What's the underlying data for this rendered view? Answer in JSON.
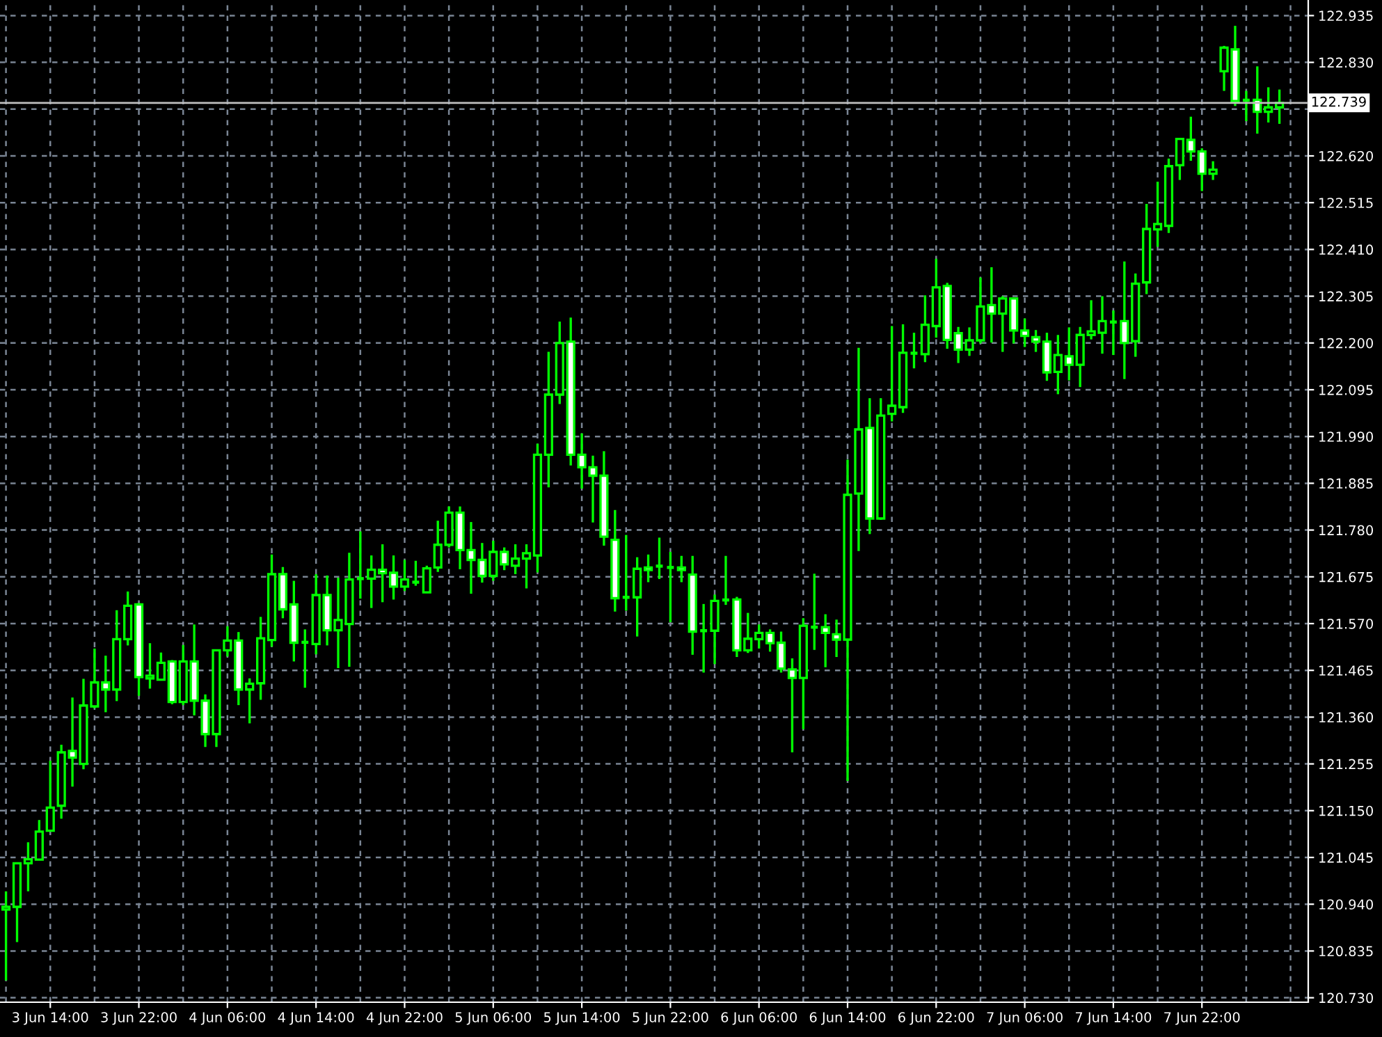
{
  "chart_data": {
    "type": "candlestick",
    "categories": [
      null,
      null,
      null,
      null,
      "3 Jun 14:00",
      null,
      null,
      null,
      null,
      null,
      null,
      null,
      "3 Jun 22:00",
      null,
      null,
      null,
      null,
      null,
      null,
      null,
      "4 Jun 06:00",
      null,
      null,
      null,
      null,
      null,
      null,
      null,
      "4 Jun 14:00",
      null,
      null,
      null,
      null,
      null,
      null,
      null,
      "4 Jun 22:00",
      null,
      null,
      null,
      null,
      null,
      null,
      null,
      "5 Jun 06:00",
      null,
      null,
      null,
      null,
      null,
      null,
      null,
      "5 Jun 14:00",
      null,
      null,
      null,
      null,
      null,
      null,
      null,
      "5 Jun 22:00",
      null,
      null,
      null,
      null,
      null,
      null,
      null,
      "6 Jun 06:00",
      null,
      null,
      null,
      null,
      null,
      null,
      null,
      "6 Jun 14:00",
      null,
      null,
      null,
      null,
      null,
      null,
      null,
      "6 Jun 22:00",
      null,
      null,
      null,
      null,
      null,
      null,
      null,
      "7 Jun 06:00",
      null,
      null,
      null,
      null,
      null,
      null,
      null,
      "7 Jun 14:00",
      null,
      null,
      null,
      null,
      null,
      null,
      null,
      "7 Jun 22:00",
      null,
      null,
      null,
      null,
      null,
      null,
      null
    ],
    "ohlc": [
      [
        120.928,
        120.969,
        120.769,
        120.934
      ],
      [
        120.934,
        121.032,
        120.855,
        121.032
      ],
      [
        121.032,
        121.079,
        120.969,
        121.041
      ],
      [
        121.04,
        121.129,
        121.04,
        121.103
      ],
      [
        121.105,
        121.262,
        121.105,
        121.157
      ],
      [
        121.161,
        121.298,
        121.132,
        121.281
      ],
      [
        121.284,
        121.404,
        121.204,
        121.269
      ],
      [
        121.255,
        121.446,
        121.243,
        121.386
      ],
      [
        121.384,
        121.514,
        121.38,
        121.438
      ],
      [
        121.438,
        121.498,
        121.371,
        121.422
      ],
      [
        121.422,
        121.6,
        121.396,
        121.535
      ],
      [
        121.535,
        121.642,
        121.521,
        121.61
      ],
      [
        121.613,
        121.616,
        121.408,
        121.45
      ],
      [
        121.447,
        121.526,
        121.424,
        121.453
      ],
      [
        121.444,
        121.505,
        121.443,
        121.482
      ],
      [
        121.485,
        121.488,
        121.389,
        121.394
      ],
      [
        121.394,
        121.522,
        121.387,
        121.485
      ],
      [
        121.485,
        121.568,
        121.364,
        121.397
      ],
      [
        121.397,
        121.411,
        121.293,
        121.322
      ],
      [
        121.322,
        121.51,
        121.293,
        121.51
      ],
      [
        121.51,
        121.564,
        121.496,
        121.532
      ],
      [
        121.532,
        121.551,
        121.387,
        121.422
      ],
      [
        121.422,
        121.447,
        121.346,
        121.435
      ],
      [
        121.436,
        121.585,
        121.399,
        121.537
      ],
      [
        121.533,
        121.725,
        121.518,
        121.681
      ],
      [
        121.681,
        121.697,
        121.582,
        121.602
      ],
      [
        121.613,
        121.666,
        121.485,
        121.527
      ],
      [
        121.528,
        121.557,
        121.426,
        121.528
      ],
      [
        121.524,
        121.681,
        121.501,
        121.634
      ],
      [
        121.634,
        121.678,
        121.521,
        121.555
      ],
      [
        121.555,
        121.673,
        121.47,
        121.578
      ],
      [
        121.569,
        121.729,
        121.473,
        121.669
      ],
      [
        121.671,
        121.777,
        121.626,
        121.671
      ],
      [
        121.671,
        121.723,
        121.605,
        121.691
      ],
      [
        121.691,
        121.748,
        121.618,
        121.683
      ],
      [
        121.684,
        121.723,
        121.624,
        121.653
      ],
      [
        121.653,
        121.713,
        121.643,
        121.669
      ],
      [
        121.663,
        121.711,
        121.655,
        121.663
      ],
      [
        121.64,
        121.7,
        121.64,
        121.694
      ],
      [
        121.696,
        121.801,
        121.686,
        121.747
      ],
      [
        121.747,
        121.833,
        121.741,
        121.819
      ],
      [
        121.819,
        121.833,
        121.692,
        121.735
      ],
      [
        121.735,
        121.798,
        121.637,
        121.713
      ],
      [
        121.713,
        121.751,
        121.662,
        121.677
      ],
      [
        121.677,
        121.756,
        121.666,
        121.731
      ],
      [
        121.731,
        121.741,
        121.69,
        121.703
      ],
      [
        121.7,
        121.748,
        121.681,
        121.716
      ],
      [
        121.716,
        121.748,
        121.649,
        121.728
      ],
      [
        121.723,
        121.974,
        121.685,
        121.949
      ],
      [
        121.949,
        122.18,
        121.876,
        122.084
      ],
      [
        122.084,
        122.248,
        122.063,
        122.2
      ],
      [
        122.203,
        122.257,
        121.925,
        121.949
      ],
      [
        121.949,
        121.997,
        121.873,
        121.921
      ],
      [
        121.921,
        121.947,
        121.797,
        121.902
      ],
      [
        121.902,
        121.957,
        121.745,
        121.765
      ],
      [
        121.758,
        121.825,
        121.597,
        121.627
      ],
      [
        121.629,
        121.769,
        121.599,
        121.629
      ],
      [
        121.629,
        121.719,
        121.541,
        121.693
      ],
      [
        121.696,
        121.725,
        121.663,
        121.69
      ],
      [
        121.699,
        121.763,
        121.67,
        121.699
      ],
      [
        121.696,
        121.731,
        121.573,
        121.696
      ],
      [
        121.696,
        121.722,
        121.663,
        121.69
      ],
      [
        121.68,
        121.722,
        121.5,
        121.552
      ],
      [
        121.554,
        121.614,
        121.46,
        121.554
      ],
      [
        121.554,
        121.635,
        121.479,
        121.621
      ],
      [
        121.623,
        121.722,
        121.612,
        121.623
      ],
      [
        121.624,
        121.63,
        121.495,
        121.51
      ],
      [
        121.51,
        121.594,
        121.504,
        121.536
      ],
      [
        121.535,
        121.568,
        121.514,
        121.549
      ],
      [
        121.549,
        121.557,
        121.507,
        121.526
      ],
      [
        121.527,
        121.552,
        121.46,
        121.469
      ],
      [
        121.467,
        121.492,
        121.281,
        121.448
      ],
      [
        121.448,
        121.582,
        121.333,
        121.565
      ],
      [
        121.562,
        121.682,
        121.511,
        121.562
      ],
      [
        121.562,
        121.591,
        121.472,
        121.549
      ],
      [
        121.546,
        121.579,
        121.495,
        121.534
      ],
      [
        121.534,
        121.938,
        121.217,
        121.859
      ],
      [
        121.862,
        122.189,
        121.733,
        122.006
      ],
      [
        122.009,
        122.076,
        121.771,
        121.806
      ],
      [
        121.806,
        122.076,
        121.803,
        122.037
      ],
      [
        122.041,
        122.238,
        122.024,
        122.059
      ],
      [
        122.056,
        122.242,
        122.043,
        122.178
      ],
      [
        122.177,
        122.223,
        122.143,
        122.177
      ],
      [
        122.175,
        122.307,
        122.157,
        122.241
      ],
      [
        122.238,
        122.389,
        122.212,
        122.325
      ],
      [
        122.328,
        122.335,
        122.187,
        122.207
      ],
      [
        122.222,
        122.236,
        122.155,
        122.185
      ],
      [
        122.185,
        122.235,
        122.171,
        122.206
      ],
      [
        122.206,
        122.347,
        122.199,
        122.282
      ],
      [
        122.285,
        122.37,
        122.201,
        122.266
      ],
      [
        122.266,
        122.305,
        122.18,
        122.3
      ],
      [
        122.3,
        122.3,
        122.199,
        122.228
      ],
      [
        122.228,
        122.255,
        122.191,
        122.216
      ],
      [
        122.213,
        122.229,
        122.18,
        122.203
      ],
      [
        122.203,
        122.223,
        122.115,
        122.134
      ],
      [
        122.135,
        122.218,
        122.085,
        122.173
      ],
      [
        122.17,
        122.235,
        122.116,
        122.151
      ],
      [
        122.151,
        122.236,
        122.101,
        122.218
      ],
      [
        122.218,
        122.296,
        122.208,
        122.226
      ],
      [
        122.223,
        122.305,
        122.176,
        122.249
      ],
      [
        122.247,
        122.273,
        122.173,
        122.247
      ],
      [
        122.249,
        122.383,
        122.119,
        122.2
      ],
      [
        122.204,
        122.356,
        122.169,
        122.333
      ],
      [
        122.336,
        122.512,
        122.31,
        122.456
      ],
      [
        122.455,
        122.562,
        122.416,
        122.467
      ],
      [
        122.463,
        122.614,
        122.447,
        122.597
      ],
      [
        122.599,
        122.658,
        122.566,
        122.658
      ],
      [
        122.656,
        122.708,
        122.609,
        122.63
      ],
      [
        122.63,
        122.637,
        122.541,
        122.58
      ],
      [
        122.58,
        122.608,
        122.566,
        122.589
      ],
      [
        122.81,
        122.867,
        122.766,
        122.863
      ],
      [
        122.859,
        122.912,
        122.732,
        122.743
      ],
      [
        122.745,
        122.766,
        122.698,
        122.745
      ],
      [
        122.746,
        122.821,
        122.67,
        122.719
      ],
      [
        122.719,
        122.774,
        122.695,
        122.729
      ],
      [
        122.729,
        122.769,
        122.692,
        122.739
      ]
    ],
    "color": "#00ff00",
    "ylim": [
      120.72,
      122.97
    ],
    "yticks": [
      {
        "value": 120.73,
        "label": "120.730"
      },
      120.835,
      {
        "value": 120.94,
        "label": "120.940"
      },
      121.045,
      {
        "value": 121.15,
        "label": "121.150"
      },
      121.255,
      {
        "value": 121.36,
        "label": "121.360"
      },
      121.465,
      {
        "value": 121.57,
        "label": "121.570"
      },
      121.675,
      {
        "value": 121.78,
        "label": "121.780"
      },
      121.885,
      {
        "value": 121.99,
        "label": "121.990"
      },
      122.095,
      {
        "value": 122.2,
        "label": "122.200"
      },
      122.305,
      {
        "value": 122.41,
        "label": "122.410"
      },
      122.515,
      {
        "value": 122.62,
        "label": "122.620"
      },
      {
        "value": 122.725,
        "label": null
      },
      {
        "value": 122.83,
        "label": "122.830"
      },
      122.935
    ],
    "ref_lines": [
      {
        "axis": "y",
        "value": 122.739,
        "label": "122.739",
        "color": "#c0c0c0"
      }
    ],
    "grid": true
  }
}
